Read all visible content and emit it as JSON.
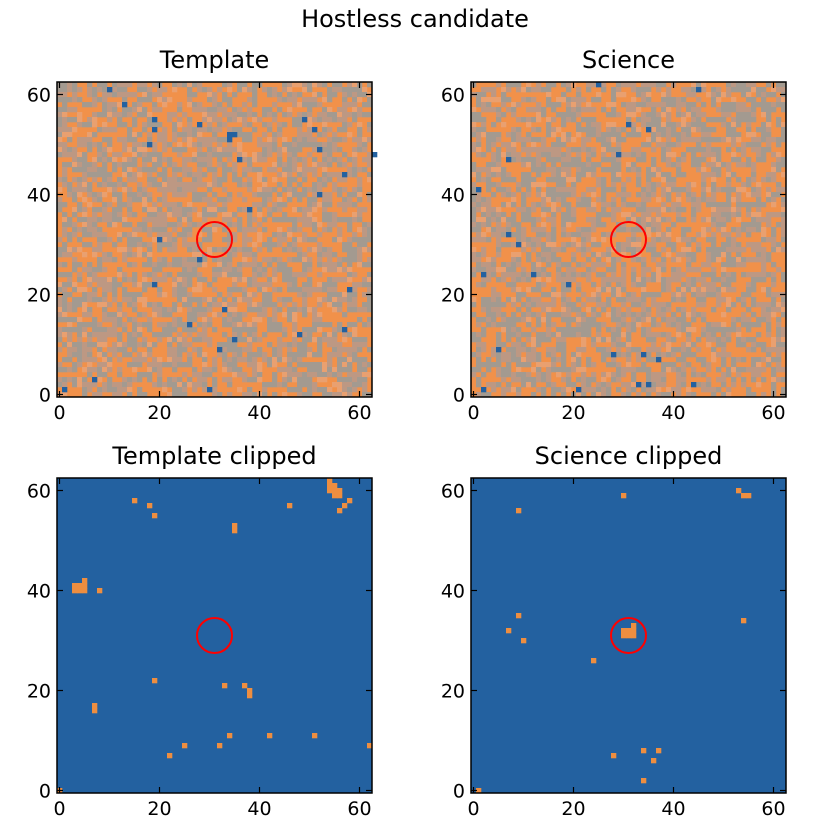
{
  "figure": {
    "title": "Hostless candidate",
    "colors": {
      "background": "#2361a0",
      "highlight": "#ee8e40",
      "noise_light": "#f1914a",
      "noise_mid": "#bd9883",
      "noise_gray": "#a39a90",
      "circle": "#ff0000"
    }
  },
  "chart_data": [
    {
      "type": "heatmap",
      "title": "Template",
      "xlabel": "",
      "ylabel": "",
      "xlim": [
        0,
        62
      ],
      "ylim": [
        0,
        62
      ],
      "xticks": [
        0,
        20,
        40,
        60
      ],
      "yticks": [
        0,
        20,
        40,
        60
      ],
      "grid": false,
      "render": "noise",
      "seed": 11,
      "circle": {
        "cx": 31.5,
        "cy": 31.5,
        "r": 3.5
      },
      "low_pixels": [
        [
          7,
          3
        ],
        [
          10,
          61
        ],
        [
          13,
          58
        ],
        [
          19,
          55
        ],
        [
          19,
          53
        ],
        [
          18,
          50
        ],
        [
          28,
          54
        ],
        [
          34,
          52
        ],
        [
          35,
          52
        ],
        [
          34,
          51
        ],
        [
          36,
          47
        ],
        [
          49,
          55
        ],
        [
          51,
          53
        ],
        [
          52,
          49
        ],
        [
          57,
          44
        ],
        [
          63,
          48
        ],
        [
          52,
          40
        ],
        [
          20,
          31
        ],
        [
          38,
          37
        ],
        [
          28,
          27
        ],
        [
          19,
          22
        ],
        [
          33,
          17
        ],
        [
          26,
          14
        ],
        [
          32,
          9
        ],
        [
          35,
          11
        ],
        [
          48,
          12
        ],
        [
          57,
          13
        ],
        [
          58,
          21
        ],
        [
          30,
          1
        ],
        [
          1,
          1
        ]
      ]
    },
    {
      "type": "heatmap",
      "title": "Science",
      "xlabel": "",
      "ylabel": "",
      "xlim": [
        0,
        62
      ],
      "ylim": [
        0,
        62
      ],
      "xticks": [
        0,
        20,
        40,
        60
      ],
      "yticks": [
        0,
        20,
        40,
        60
      ],
      "grid": false,
      "render": "noise",
      "seed": 29,
      "circle": {
        "cx": 31.5,
        "cy": 31.5,
        "r": 3.5
      },
      "low_pixels": [
        [
          25,
          62
        ],
        [
          45,
          61
        ],
        [
          31,
          54
        ],
        [
          35,
          53
        ],
        [
          29,
          48
        ],
        [
          7,
          47
        ],
        [
          1,
          41
        ],
        [
          7,
          32
        ],
        [
          9,
          30
        ],
        [
          12,
          24
        ],
        [
          2,
          24
        ],
        [
          19,
          22
        ],
        [
          21,
          1
        ],
        [
          33,
          2
        ],
        [
          35,
          2
        ],
        [
          5,
          9
        ],
        [
          28,
          8
        ],
        [
          34,
          8
        ],
        [
          37,
          7
        ],
        [
          44,
          2
        ],
        [
          2,
          1
        ]
      ]
    },
    {
      "type": "heatmap",
      "title": "Template clipped",
      "xlabel": "",
      "ylabel": "",
      "xlim": [
        0,
        62
      ],
      "ylim": [
        0,
        62
      ],
      "xticks": [
        0,
        20,
        40,
        60
      ],
      "yticks": [
        0,
        20,
        40,
        60
      ],
      "grid": false,
      "render": "binary",
      "circle": {
        "cx": 31.5,
        "cy": 31.5,
        "r": 3.5
      },
      "high_pixels": [
        [
          54,
          62
        ],
        [
          54,
          61
        ],
        [
          55,
          61
        ],
        [
          54,
          60
        ],
        [
          55,
          60
        ],
        [
          56,
          60
        ],
        [
          55,
          59
        ],
        [
          56,
          59
        ],
        [
          58,
          58
        ],
        [
          57,
          57
        ],
        [
          56,
          56
        ],
        [
          15,
          58
        ],
        [
          18,
          57
        ],
        [
          19,
          55
        ],
        [
          46,
          57
        ],
        [
          35,
          52
        ],
        [
          35,
          53
        ],
        [
          3,
          41
        ],
        [
          3,
          40
        ],
        [
          4,
          41
        ],
        [
          4,
          40
        ],
        [
          5,
          42
        ],
        [
          5,
          41
        ],
        [
          5,
          40
        ],
        [
          8,
          40
        ],
        [
          19,
          22
        ],
        [
          7,
          17
        ],
        [
          7,
          16
        ],
        [
          33,
          21
        ],
        [
          37,
          21
        ],
        [
          38,
          20
        ],
        [
          38,
          19
        ],
        [
          22,
          7
        ],
        [
          25,
          9
        ],
        [
          32,
          9
        ],
        [
          34,
          11
        ],
        [
          42,
          11
        ],
        [
          51,
          11
        ],
        [
          62,
          9
        ],
        [
          0,
          0
        ]
      ]
    },
    {
      "type": "heatmap",
      "title": "Science clipped",
      "xlabel": "",
      "ylabel": "",
      "xlim": [
        0,
        62
      ],
      "ylim": [
        0,
        62
      ],
      "xticks": [
        0,
        20,
        40,
        60
      ],
      "yticks": [
        0,
        20,
        40,
        60
      ],
      "grid": false,
      "render": "binary",
      "circle": {
        "cx": 31.5,
        "cy": 31.5,
        "r": 3.5
      },
      "high_pixels": [
        [
          30,
          59
        ],
        [
          53,
          60
        ],
        [
          54,
          59
        ],
        [
          55,
          59
        ],
        [
          9,
          56
        ],
        [
          9,
          35
        ],
        [
          7,
          32
        ],
        [
          10,
          30
        ],
        [
          54,
          34
        ],
        [
          30,
          32
        ],
        [
          31,
          32
        ],
        [
          32,
          32
        ],
        [
          30,
          31
        ],
        [
          31,
          31
        ],
        [
          32,
          31
        ],
        [
          32,
          33
        ],
        [
          24,
          26
        ],
        [
          28,
          7
        ],
        [
          34,
          8
        ],
        [
          37,
          8
        ],
        [
          36,
          6
        ],
        [
          34,
          2
        ],
        [
          1,
          0
        ]
      ]
    }
  ]
}
